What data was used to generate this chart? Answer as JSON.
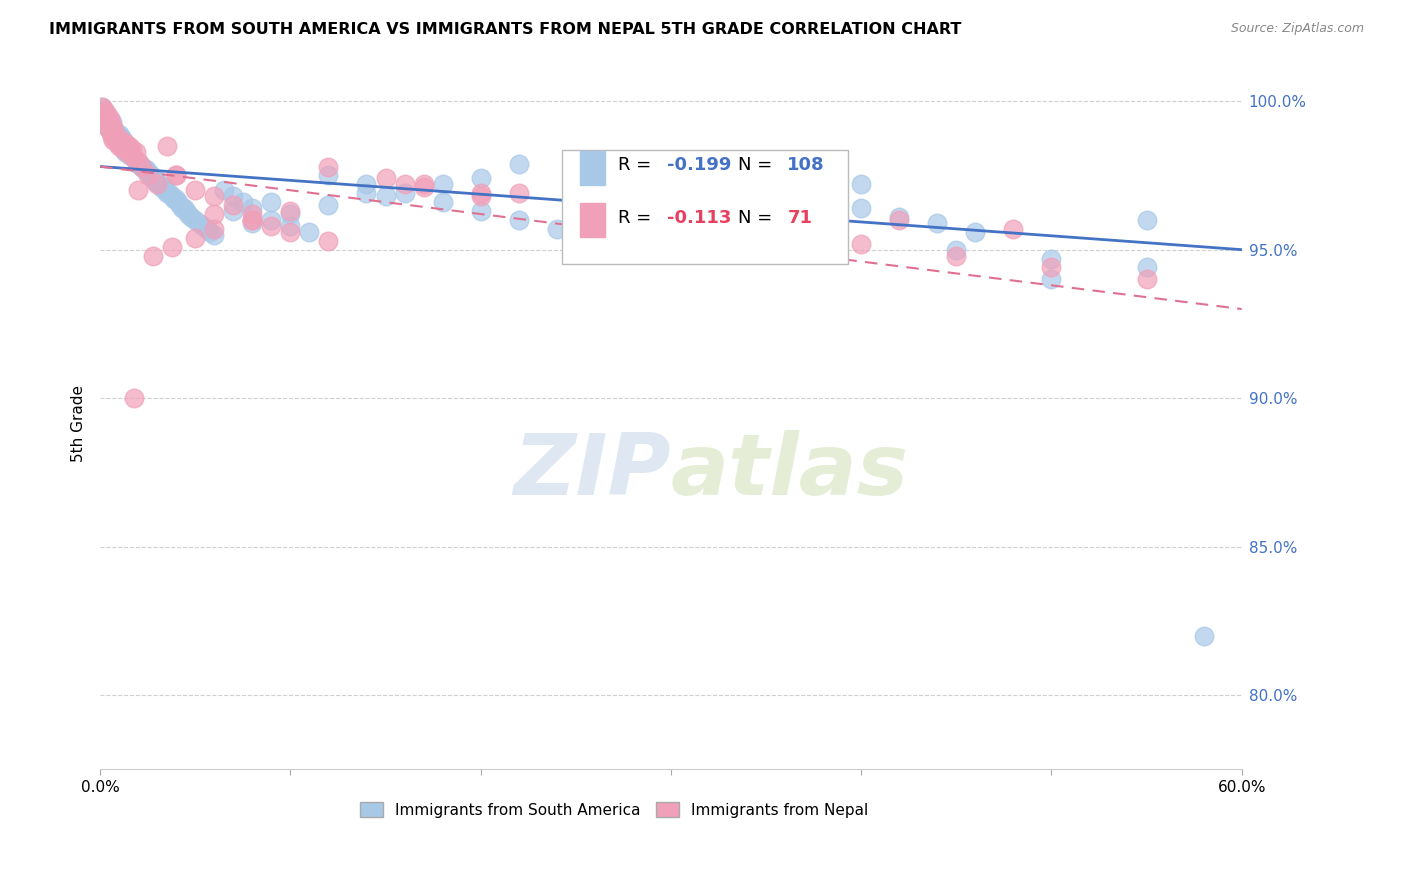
{
  "title": "IMMIGRANTS FROM SOUTH AMERICA VS IMMIGRANTS FROM NEPAL 5TH GRADE CORRELATION CHART",
  "source": "Source: ZipAtlas.com",
  "ylabel": "5th Grade",
  "ytick_labels": [
    "100.0%",
    "95.0%",
    "90.0%",
    "85.0%",
    "80.0%"
  ],
  "ytick_values": [
    1.0,
    0.95,
    0.9,
    0.85,
    0.8
  ],
  "xlim": [
    0.0,
    0.6
  ],
  "ylim": [
    0.775,
    1.008
  ],
  "legend_R_blue": "-0.199",
  "legend_N_blue": "108",
  "legend_R_pink": "-0.113",
  "legend_N_pink": "71",
  "blue_color": "#a8c8e8",
  "pink_color": "#f0a0b8",
  "trendline_blue_color": "#4472c4",
  "trendline_pink_color": "#e07090",
  "trendline_blue_x0": 0.0,
  "trendline_blue_y0": 0.978,
  "trendline_blue_x1": 0.6,
  "trendline_blue_y1": 0.95,
  "trendline_pink_x0": 0.0,
  "trendline_pink_y0": 0.978,
  "trendline_pink_x1": 0.6,
  "trendline_pink_y1": 0.93,
  "blue_scatter_x": [
    0.001,
    0.002,
    0.002,
    0.003,
    0.003,
    0.004,
    0.004,
    0.005,
    0.005,
    0.006,
    0.006,
    0.007,
    0.008,
    0.008,
    0.009,
    0.01,
    0.01,
    0.011,
    0.011,
    0.012,
    0.012,
    0.013,
    0.013,
    0.014,
    0.015,
    0.015,
    0.016,
    0.017,
    0.018,
    0.019,
    0.02,
    0.021,
    0.022,
    0.023,
    0.024,
    0.025,
    0.026,
    0.027,
    0.028,
    0.029,
    0.03,
    0.031,
    0.032,
    0.033,
    0.034,
    0.035,
    0.036,
    0.038,
    0.039,
    0.04,
    0.041,
    0.042,
    0.043,
    0.044,
    0.045,
    0.046,
    0.048,
    0.05,
    0.052,
    0.054,
    0.056,
    0.058,
    0.06,
    0.065,
    0.07,
    0.075,
    0.08,
    0.09,
    0.1,
    0.11,
    0.12,
    0.14,
    0.16,
    0.18,
    0.2,
    0.22,
    0.24,
    0.26,
    0.28,
    0.3,
    0.32,
    0.35,
    0.38,
    0.4,
    0.42,
    0.44,
    0.46,
    0.5,
    0.55,
    0.58,
    0.2,
    0.25,
    0.15,
    0.12,
    0.1,
    0.08,
    0.3,
    0.35,
    0.4,
    0.22,
    0.28,
    0.45,
    0.5,
    0.55,
    0.18,
    0.14,
    0.09,
    0.07
  ],
  "blue_scatter_y": [
    0.998,
    0.997,
    0.994,
    0.996,
    0.993,
    0.995,
    0.991,
    0.994,
    0.99,
    0.993,
    0.989,
    0.991,
    0.988,
    0.99,
    0.987,
    0.989,
    0.986,
    0.988,
    0.985,
    0.987,
    0.984,
    0.986,
    0.983,
    0.985,
    0.984,
    0.982,
    0.983,
    0.982,
    0.981,
    0.98,
    0.979,
    0.979,
    0.978,
    0.977,
    0.977,
    0.976,
    0.975,
    0.975,
    0.974,
    0.973,
    0.973,
    0.972,
    0.971,
    0.971,
    0.97,
    0.969,
    0.969,
    0.968,
    0.967,
    0.967,
    0.966,
    0.965,
    0.964,
    0.964,
    0.963,
    0.962,
    0.961,
    0.96,
    0.959,
    0.958,
    0.957,
    0.956,
    0.955,
    0.97,
    0.968,
    0.966,
    0.964,
    0.96,
    0.958,
    0.956,
    0.975,
    0.972,
    0.969,
    0.966,
    0.963,
    0.96,
    0.957,
    0.954,
    0.951,
    0.975,
    0.972,
    0.97,
    0.967,
    0.964,
    0.961,
    0.959,
    0.956,
    0.94,
    0.96,
    0.82,
    0.974,
    0.971,
    0.968,
    0.965,
    0.962,
    0.959,
    0.978,
    0.975,
    0.972,
    0.979,
    0.976,
    0.95,
    0.947,
    0.944,
    0.972,
    0.969,
    0.966,
    0.963
  ],
  "pink_scatter_x": [
    0.001,
    0.001,
    0.002,
    0.002,
    0.003,
    0.003,
    0.004,
    0.004,
    0.005,
    0.005,
    0.006,
    0.006,
    0.007,
    0.007,
    0.008,
    0.009,
    0.009,
    0.01,
    0.011,
    0.012,
    0.013,
    0.014,
    0.015,
    0.016,
    0.017,
    0.018,
    0.019,
    0.02,
    0.022,
    0.025,
    0.03,
    0.035,
    0.04,
    0.05,
    0.06,
    0.07,
    0.08,
    0.09,
    0.1,
    0.12,
    0.15,
    0.17,
    0.2,
    0.25,
    0.3,
    0.35,
    0.4,
    0.45,
    0.5,
    0.55,
    0.17,
    0.22,
    0.28,
    0.35,
    0.42,
    0.48,
    0.08,
    0.12,
    0.06,
    0.04,
    0.02,
    0.16,
    0.2,
    0.25,
    0.1,
    0.08,
    0.06,
    0.05,
    0.038,
    0.028,
    0.018
  ],
  "pink_scatter_y": [
    0.998,
    0.996,
    0.997,
    0.994,
    0.996,
    0.993,
    0.995,
    0.991,
    0.994,
    0.99,
    0.992,
    0.988,
    0.991,
    0.987,
    0.989,
    0.986,
    0.988,
    0.985,
    0.987,
    0.984,
    0.986,
    0.983,
    0.985,
    0.982,
    0.984,
    0.981,
    0.983,
    0.98,
    0.978,
    0.975,
    0.972,
    0.985,
    0.975,
    0.97,
    0.968,
    0.965,
    0.962,
    0.958,
    0.956,
    0.953,
    0.974,
    0.971,
    0.968,
    0.964,
    0.96,
    0.956,
    0.952,
    0.948,
    0.944,
    0.94,
    0.972,
    0.969,
    0.966,
    0.963,
    0.96,
    0.957,
    0.96,
    0.978,
    0.962,
    0.975,
    0.97,
    0.972,
    0.969,
    0.966,
    0.963,
    0.96,
    0.957,
    0.954,
    0.951,
    0.948,
    0.9
  ],
  "watermark_zip": "ZIP",
  "watermark_atlas": "atlas",
  "background_color": "#ffffff",
  "grid_color": "#d0d0d0"
}
